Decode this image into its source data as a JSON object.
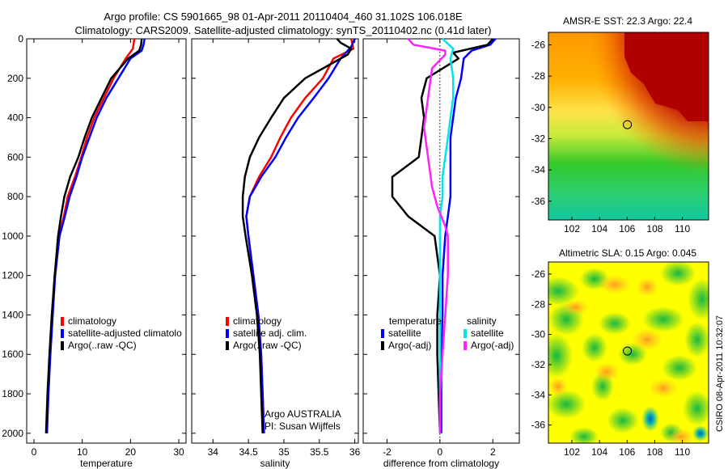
{
  "title": {
    "line1": "Argo profile: CS 5901665_98 01-Apr-2011 20110404_460 31.102S 106.018E",
    "line2": "Climatology: CARS2009. Satellite-adjusted climatology: synTS_20110402.nc (0.41d later)"
  },
  "credits": {
    "argo": "Argo AUSTRALIA",
    "pi": "PI: Susan Wijffels",
    "stamp": "CSIRO 08-Apr-2011 10:32:07"
  },
  "colors": {
    "climatology": "#ff0000",
    "satellite": "#0000ff",
    "argo": "#000000",
    "salinity_satellite": "#00e5e5",
    "salinity_argo": "#ff22ff",
    "map_bg": "#ffff00"
  },
  "chart_data": [
    {
      "type": "line",
      "id": "temperature",
      "xlabel": "temperature",
      "ylabel": "",
      "xlim": [
        -1.5,
        31.5
      ],
      "ylim": [
        2050,
        0
      ],
      "x_ticks": [
        0,
        10,
        20,
        30
      ],
      "y_ticks": [
        0,
        200,
        400,
        600,
        800,
        1000,
        1200,
        1400,
        1600,
        1800,
        2000
      ],
      "legend_position": "lower-right",
      "legend": [
        "climatology",
        "satellite-adjusted climatolo",
        "Argo(..raw -QC)"
      ],
      "series": [
        {
          "name": "climatology",
          "color": "#ff0000",
          "points": [
            [
              20.8,
              0
            ],
            [
              20.5,
              50
            ],
            [
              19.0,
              100
            ],
            [
              16.5,
              200
            ],
            [
              14.5,
              300
            ],
            [
              12.5,
              400
            ],
            [
              11.0,
              500
            ],
            [
              9.8,
              600
            ],
            [
              8.5,
              700
            ],
            [
              7.0,
              800
            ],
            [
              6.2,
              900
            ],
            [
              5.2,
              1000
            ],
            [
              4.3,
              1200
            ],
            [
              3.8,
              1400
            ],
            [
              3.3,
              1600
            ],
            [
              2.9,
              1800
            ],
            [
              2.7,
              2000
            ]
          ]
        },
        {
          "name": "satellite-adjusted climatolo",
          "color": "#0000ff",
          "points": [
            [
              22.9,
              0
            ],
            [
              22.7,
              30
            ],
            [
              22.3,
              60
            ],
            [
              20.0,
              100
            ],
            [
              17.5,
              200
            ],
            [
              15.0,
              300
            ],
            [
              13.0,
              400
            ],
            [
              11.5,
              500
            ],
            [
              10.0,
              600
            ],
            [
              8.8,
              700
            ],
            [
              7.4,
              800
            ],
            [
              6.4,
              900
            ],
            [
              5.3,
              1000
            ],
            [
              4.4,
              1200
            ],
            [
              3.9,
              1400
            ],
            [
              3.4,
              1600
            ],
            [
              3.0,
              1800
            ],
            [
              2.7,
              2000
            ]
          ]
        },
        {
          "name": "Argo(..raw -QC)",
          "color": "#000000",
          "points": [
            [
              22.3,
              0
            ],
            [
              22.2,
              30
            ],
            [
              21.8,
              60
            ],
            [
              19.5,
              100
            ],
            [
              16.0,
              200
            ],
            [
              14.0,
              300
            ],
            [
              12.0,
              400
            ],
            [
              10.5,
              500
            ],
            [
              9.2,
              600
            ],
            [
              7.5,
              700
            ],
            [
              6.3,
              800
            ],
            [
              5.6,
              900
            ],
            [
              5.0,
              1000
            ],
            [
              4.3,
              1200
            ],
            [
              3.7,
              1400
            ],
            [
              3.2,
              1600
            ],
            [
              2.8,
              1800
            ],
            [
              2.5,
              2000
            ]
          ]
        }
      ]
    },
    {
      "type": "line",
      "id": "salinity",
      "xlabel": "salinity",
      "ylabel": "",
      "xlim": [
        33.7,
        36.05
      ],
      "ylim": [
        2050,
        0
      ],
      "x_ticks": [
        34,
        34.5,
        35,
        35.5,
        36
      ],
      "y_ticks": [
        0,
        200,
        400,
        600,
        800,
        1000,
        1200,
        1400,
        1600,
        1800,
        2000
      ],
      "legend_position": "lower-right",
      "legend": [
        "climatology",
        "satellite adj. clim.",
        "Argo(..raw -QC)"
      ],
      "series": [
        {
          "name": "climatology",
          "color": "#ff0000",
          "points": [
            [
              35.95,
              0
            ],
            [
              35.98,
              50
            ],
            [
              35.7,
              100
            ],
            [
              35.55,
              200
            ],
            [
              35.3,
              300
            ],
            [
              35.1,
              400
            ],
            [
              34.95,
              500
            ],
            [
              34.82,
              600
            ],
            [
              34.65,
              700
            ],
            [
              34.52,
              800
            ],
            [
              34.47,
              900
            ],
            [
              34.5,
              1000
            ],
            [
              34.57,
              1200
            ],
            [
              34.64,
              1400
            ],
            [
              34.68,
              1600
            ],
            [
              34.7,
              1800
            ],
            [
              34.72,
              2000
            ]
          ]
        },
        {
          "name": "satellite adj. clim.",
          "color": "#0000ff",
          "points": [
            [
              36.0,
              0
            ],
            [
              35.95,
              40
            ],
            [
              35.8,
              100
            ],
            [
              35.63,
              200
            ],
            [
              35.42,
              300
            ],
            [
              35.2,
              400
            ],
            [
              35.03,
              500
            ],
            [
              34.88,
              600
            ],
            [
              34.68,
              700
            ],
            [
              34.52,
              800
            ],
            [
              34.47,
              900
            ],
            [
              34.5,
              1000
            ],
            [
              34.57,
              1200
            ],
            [
              34.64,
              1400
            ],
            [
              34.68,
              1600
            ],
            [
              34.7,
              1800
            ],
            [
              34.72,
              2000
            ]
          ]
        },
        {
          "name": "Argo(..raw -QC)",
          "color": "#000000",
          "points": [
            [
              35.75,
              0
            ],
            [
              35.8,
              20
            ],
            [
              35.95,
              50
            ],
            [
              35.9,
              80
            ],
            [
              35.55,
              150
            ],
            [
              35.3,
              200
            ],
            [
              35.0,
              300
            ],
            [
              34.82,
              400
            ],
            [
              34.65,
              500
            ],
            [
              34.52,
              600
            ],
            [
              34.45,
              700
            ],
            [
              34.42,
              800
            ],
            [
              34.42,
              900
            ],
            [
              34.46,
              1000
            ],
            [
              34.55,
              1200
            ],
            [
              34.62,
              1400
            ],
            [
              34.66,
              1600
            ],
            [
              34.68,
              1800
            ],
            [
              34.7,
              2000
            ]
          ]
        }
      ]
    },
    {
      "type": "line",
      "id": "difference",
      "xlabel": "difference from climatology",
      "ylabel": "",
      "xlim": [
        -2.9,
        3.0
      ],
      "ylim": [
        2050,
        0
      ],
      "x_ticks": [
        -2,
        0,
        2
      ],
      "y_ticks": [
        0,
        200,
        400,
        600,
        800,
        1000,
        1200,
        1400,
        1600,
        1800,
        2000
      ],
      "legend_position": "lower-center",
      "legend_groups": [
        {
          "title": "temperature",
          "items": [
            "satellite",
            "Argo(-adj)"
          ]
        },
        {
          "title": "salinity",
          "items": [
            "satellite",
            "Argo(-adj)"
          ]
        }
      ],
      "series": [
        {
          "name": "temperature satellite",
          "color": "#0000ff",
          "points": [
            [
              2.1,
              0
            ],
            [
              1.9,
              30
            ],
            [
              1.2,
              60
            ],
            [
              0.9,
              100
            ],
            [
              0.8,
              200
            ],
            [
              0.6,
              300
            ],
            [
              0.5,
              400
            ],
            [
              0.4,
              500
            ],
            [
              0.4,
              600
            ],
            [
              0.4,
              700
            ],
            [
              0.4,
              800
            ],
            [
              0.3,
              900
            ],
            [
              0.2,
              1000
            ],
            [
              0.1,
              1200
            ],
            [
              0.1,
              1400
            ],
            [
              0.05,
              1600
            ],
            [
              0.05,
              1800
            ],
            [
              0.05,
              2000
            ]
          ]
        },
        {
          "name": "temperature Argo(-adj)",
          "color": "#000000",
          "points": [
            [
              2.0,
              0
            ],
            [
              1.8,
              30
            ],
            [
              0.5,
              70
            ],
            [
              0.7,
              100
            ],
            [
              -0.5,
              200
            ],
            [
              -0.7,
              300
            ],
            [
              -0.6,
              400
            ],
            [
              -0.7,
              500
            ],
            [
              -0.8,
              600
            ],
            [
              -1.8,
              700
            ],
            [
              -1.8,
              800
            ],
            [
              -1.2,
              900
            ],
            [
              -0.2,
              1000
            ],
            [
              0,
              1200
            ],
            [
              -0.1,
              1400
            ],
            [
              -0.1,
              1600
            ],
            [
              -0.05,
              1800
            ],
            [
              0,
              2000
            ]
          ]
        },
        {
          "name": "salinity satellite",
          "color": "#00e5e5",
          "points": [
            [
              0.1,
              0
            ],
            [
              0.5,
              50
            ],
            [
              0.4,
              100
            ],
            [
              0.5,
              200
            ],
            [
              0.5,
              300
            ],
            [
              0.4,
              400
            ],
            [
              0.3,
              500
            ],
            [
              0.2,
              600
            ],
            [
              0.1,
              700
            ],
            [
              0.1,
              800
            ],
            [
              0.0,
              900
            ],
            [
              0.0,
              1000
            ],
            [
              0.0,
              1200
            ],
            [
              0.0,
              1400
            ],
            [
              0.0,
              1600
            ],
            [
              0.0,
              1800
            ],
            [
              0.0,
              2000
            ]
          ]
        },
        {
          "name": "salinity Argo(-adj)",
          "color": "#ff22ff",
          "points": [
            [
              -1.2,
              0
            ],
            [
              -1.0,
              30
            ],
            [
              0.2,
              60
            ],
            [
              0.2,
              80
            ],
            [
              -0.3,
              150
            ],
            [
              -0.4,
              250
            ],
            [
              -0.5,
              350
            ],
            [
              -0.6,
              450
            ],
            [
              -0.5,
              550
            ],
            [
              -0.4,
              650
            ],
            [
              -0.3,
              750
            ],
            [
              -0.1,
              850
            ],
            [
              0.2,
              950
            ],
            [
              0.3,
              1000
            ],
            [
              0.3,
              1200
            ],
            [
              0.2,
              1400
            ],
            [
              0.1,
              1600
            ],
            [
              0.0,
              1800
            ],
            [
              0.0,
              2000
            ]
          ]
        }
      ]
    },
    {
      "type": "heatmap",
      "id": "sst-map",
      "title": "AMSR-E SST: 22.3 Argo: 22.4",
      "x_ticks": [
        102,
        104,
        106,
        108,
        110
      ],
      "y_ticks": [
        -26,
        -28,
        -30,
        -32,
        -34,
        -36
      ],
      "xlim": [
        100.3,
        111.9
      ],
      "ylim": [
        -37.2,
        -25.2
      ],
      "marker": [
        106.02,
        -31.1
      ]
    },
    {
      "type": "heatmap",
      "id": "sla-map",
      "title": "Altimetric SLA: 0.15 Argo: 0.045",
      "x_ticks": [
        102,
        104,
        106,
        108,
        110
      ],
      "y_ticks": [
        -26,
        -28,
        -30,
        -32,
        -34,
        -36
      ],
      "xlim": [
        100.3,
        111.9
      ],
      "ylim": [
        -37.2,
        -25.2
      ],
      "marker": [
        106.02,
        -31.1
      ]
    }
  ]
}
